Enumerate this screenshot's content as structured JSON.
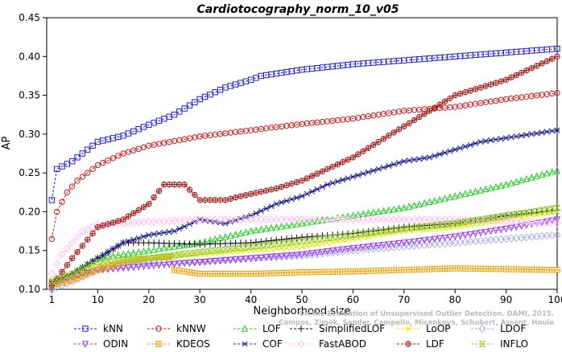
{
  "chart_data": {
    "type": "line",
    "title": "Cardiotocography_norm_10_v05",
    "xlabel": "Neighborhood size",
    "ylabel": "AP",
    "xlim": [
      0,
      100
    ],
    "ylim": [
      0.1,
      0.45
    ],
    "x_ticks": [
      1,
      10,
      20,
      30,
      40,
      50,
      60,
      70,
      80,
      90,
      100
    ],
    "y_ticks": [
      "0.10",
      "0.15",
      "0.20",
      "0.25",
      "0.30",
      "0.35",
      "0.40",
      "0.45"
    ],
    "grid": false,
    "legend_position": "bottom",
    "watermark": "Campos, Zimek, Sander, Campello, Micenkova, Schubert, Assent, Houle: On the Evaluation of Unsupervised Outlier Detection. DAMI, 2015.",
    "series": [
      {
        "name": "kNN",
        "color": "#1a1aeb",
        "marker": "square",
        "points": [
          [
            1,
            0.215
          ],
          [
            2,
            0.255
          ],
          [
            5,
            0.265
          ],
          [
            10,
            0.29
          ],
          [
            15,
            0.298
          ],
          [
            20,
            0.312
          ],
          [
            25,
            0.325
          ],
          [
            30,
            0.345
          ],
          [
            35,
            0.36
          ],
          [
            40,
            0.37
          ],
          [
            42,
            0.375
          ],
          [
            50,
            0.383
          ],
          [
            60,
            0.39
          ],
          [
            70,
            0.395
          ],
          [
            80,
            0.4
          ],
          [
            90,
            0.405
          ],
          [
            100,
            0.41
          ]
        ]
      },
      {
        "name": "kNNW",
        "color": "#cc1a1a",
        "marker": "circle",
        "points": [
          [
            1,
            0.165
          ],
          [
            2,
            0.2
          ],
          [
            4,
            0.225
          ],
          [
            6,
            0.24
          ],
          [
            10,
            0.26
          ],
          [
            15,
            0.275
          ],
          [
            20,
            0.285
          ],
          [
            30,
            0.297
          ],
          [
            40,
            0.305
          ],
          [
            50,
            0.313
          ],
          [
            60,
            0.32
          ],
          [
            70,
            0.33
          ],
          [
            80,
            0.335
          ],
          [
            90,
            0.345
          ],
          [
            100,
            0.353
          ]
        ]
      },
      {
        "name": "LOF",
        "color": "#22cc22",
        "marker": "triangle",
        "points": [
          [
            1,
            0.105
          ],
          [
            5,
            0.12
          ],
          [
            10,
            0.14
          ],
          [
            20,
            0.15
          ],
          [
            30,
            0.16
          ],
          [
            40,
            0.175
          ],
          [
            50,
            0.185
          ],
          [
            60,
            0.195
          ],
          [
            70,
            0.205
          ],
          [
            80,
            0.22
          ],
          [
            90,
            0.235
          ],
          [
            100,
            0.253
          ]
        ]
      },
      {
        "name": "SimplifiedLOF",
        "color": "#111111",
        "marker": "plus",
        "points": [
          [
            1,
            0.108
          ],
          [
            5,
            0.12
          ],
          [
            10,
            0.14
          ],
          [
            15,
            0.16
          ],
          [
            20,
            0.16
          ],
          [
            30,
            0.158
          ],
          [
            40,
            0.16
          ],
          [
            50,
            0.167
          ],
          [
            60,
            0.172
          ],
          [
            70,
            0.18
          ],
          [
            80,
            0.185
          ],
          [
            90,
            0.195
          ],
          [
            100,
            0.202
          ]
        ]
      },
      {
        "name": "LoOP",
        "color": "#e6e600",
        "marker": "x",
        "points": [
          [
            1,
            0.112
          ],
          [
            5,
            0.118
          ],
          [
            10,
            0.13
          ],
          [
            20,
            0.14
          ],
          [
            30,
            0.145
          ],
          [
            40,
            0.15
          ],
          [
            50,
            0.155
          ],
          [
            60,
            0.165
          ],
          [
            70,
            0.175
          ],
          [
            80,
            0.18
          ],
          [
            90,
            0.19
          ],
          [
            100,
            0.2
          ]
        ]
      },
      {
        "name": "LDOF",
        "color": "#b0b0ee",
        "marker": "diamond",
        "points": [
          [
            1,
            0.1
          ],
          [
            5,
            0.11
          ],
          [
            10,
            0.125
          ],
          [
            20,
            0.135
          ],
          [
            30,
            0.135
          ],
          [
            40,
            0.14
          ],
          [
            50,
            0.143
          ],
          [
            60,
            0.15
          ],
          [
            70,
            0.155
          ],
          [
            80,
            0.16
          ],
          [
            90,
            0.165
          ],
          [
            100,
            0.17
          ]
        ]
      },
      {
        "name": "ODIN",
        "color": "#9933ee",
        "marker": "triangle-down",
        "points": [
          [
            1,
            0.108
          ],
          [
            5,
            0.115
          ],
          [
            10,
            0.125
          ],
          [
            20,
            0.13
          ],
          [
            30,
            0.135
          ],
          [
            40,
            0.14
          ],
          [
            50,
            0.145
          ],
          [
            60,
            0.153
          ],
          [
            70,
            0.16
          ],
          [
            80,
            0.168
          ],
          [
            90,
            0.178
          ],
          [
            100,
            0.19
          ]
        ]
      },
      {
        "name": "KDEOS",
        "color": "#f0a000",
        "marker": "square-cross",
        "points": [
          [
            1,
            0.105
          ],
          [
            5,
            0.112
          ],
          [
            10,
            0.125
          ],
          [
            15,
            0.135
          ],
          [
            20,
            0.14
          ],
          [
            24,
            0.142
          ],
          [
            25,
            0.125
          ],
          [
            30,
            0.12
          ],
          [
            40,
            0.12
          ],
          [
            50,
            0.122
          ],
          [
            60,
            0.123
          ],
          [
            70,
            0.125
          ],
          [
            80,
            0.127
          ],
          [
            90,
            0.126
          ],
          [
            100,
            0.125
          ]
        ]
      },
      {
        "name": "COF",
        "color": "#1a1a8c",
        "marker": "asterisk",
        "points": [
          [
            1,
            0.11
          ],
          [
            5,
            0.12
          ],
          [
            10,
            0.14
          ],
          [
            15,
            0.16
          ],
          [
            20,
            0.17
          ],
          [
            25,
            0.175
          ],
          [
            30,
            0.19
          ],
          [
            35,
            0.185
          ],
          [
            40,
            0.195
          ],
          [
            45,
            0.21
          ],
          [
            50,
            0.22
          ],
          [
            55,
            0.235
          ],
          [
            60,
            0.245
          ],
          [
            65,
            0.255
          ],
          [
            70,
            0.265
          ],
          [
            75,
            0.27
          ],
          [
            80,
            0.28
          ],
          [
            85,
            0.29
          ],
          [
            90,
            0.295
          ],
          [
            95,
            0.3
          ],
          [
            100,
            0.305
          ]
        ]
      },
      {
        "name": "FastABOD",
        "color": "#ffc0f0",
        "marker": "diamond-open",
        "points": [
          [
            1,
            0.12
          ],
          [
            3,
            0.145
          ],
          [
            5,
            0.16
          ],
          [
            7,
            0.175
          ],
          [
            10,
            0.183
          ],
          [
            15,
            0.185
          ],
          [
            20,
            0.187
          ],
          [
            30,
            0.19
          ],
          [
            40,
            0.19
          ],
          [
            50,
            0.19
          ],
          [
            60,
            0.19
          ],
          [
            70,
            0.19
          ],
          [
            80,
            0.19
          ],
          [
            90,
            0.188
          ],
          [
            100,
            0.185
          ]
        ]
      },
      {
        "name": "LDF",
        "color": "#a01818",
        "marker": "circle-plus",
        "points": [
          [
            1,
            0.105
          ],
          [
            5,
            0.14
          ],
          [
            10,
            0.18
          ],
          [
            15,
            0.19
          ],
          [
            20,
            0.21
          ],
          [
            23,
            0.235
          ],
          [
            27,
            0.235
          ],
          [
            30,
            0.215
          ],
          [
            35,
            0.215
          ],
          [
            38,
            0.22
          ],
          [
            45,
            0.23
          ],
          [
            50,
            0.24
          ],
          [
            55,
            0.255
          ],
          [
            60,
            0.27
          ],
          [
            65,
            0.29
          ],
          [
            70,
            0.31
          ],
          [
            75,
            0.33
          ],
          [
            80,
            0.35
          ],
          [
            85,
            0.36
          ],
          [
            90,
            0.37
          ],
          [
            95,
            0.385
          ],
          [
            100,
            0.4
          ]
        ]
      },
      {
        "name": "INFLO",
        "color": "#99cc33",
        "marker": "hourglass",
        "points": [
          [
            1,
            0.11
          ],
          [
            5,
            0.12
          ],
          [
            10,
            0.135
          ],
          [
            20,
            0.14
          ],
          [
            30,
            0.148
          ],
          [
            40,
            0.155
          ],
          [
            50,
            0.162
          ],
          [
            60,
            0.17
          ],
          [
            70,
            0.178
          ],
          [
            80,
            0.185
          ],
          [
            90,
            0.195
          ],
          [
            100,
            0.205
          ]
        ]
      }
    ]
  }
}
